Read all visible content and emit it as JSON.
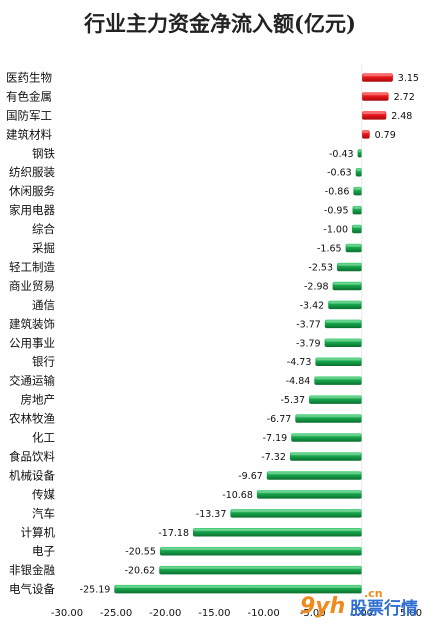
{
  "chart_data": {
    "type": "bar",
    "orientation": "horizontal",
    "title": "行业主力资金净流入额(亿元)",
    "categories": [
      "医药生物",
      "有色金属",
      "国防军工",
      "建筑材料",
      "钢铁",
      "纺织服装",
      "休闲服务",
      "家用电器",
      "综合",
      "采掘",
      "轻工制造",
      "商业贸易",
      "通信",
      "建筑装饰",
      "公用事业",
      "银行",
      "交通运输",
      "房地产",
      "农林牧渔",
      "化工",
      "食品饮料",
      "机械设备",
      "传媒",
      "汽车",
      "计算机",
      "电子",
      "非银金融",
      "电气设备"
    ],
    "values": [
      3.15,
      2.72,
      2.48,
      0.79,
      -0.43,
      -0.63,
      -0.86,
      -0.95,
      -1.0,
      -1.65,
      -2.53,
      -2.98,
      -3.42,
      -3.77,
      -3.79,
      -4.73,
      -4.84,
      -5.37,
      -6.77,
      -7.19,
      -7.32,
      -9.67,
      -10.68,
      -13.37,
      -17.18,
      -20.55,
      -20.62,
      -25.19
    ],
    "value_labels": [
      "3.15",
      "2.72",
      "2.48",
      "0.79",
      "-0.43",
      "-0.63",
      "-0.86",
      "-0.95",
      "-1.00",
      "-1.65",
      "-2.53",
      "-2.98",
      "-3.42",
      "-3.77",
      "-3.79",
      "-4.73",
      "-4.84",
      "-5.37",
      "-6.77",
      "-7.19",
      "-7.32",
      "-9.67",
      "-10.68",
      "-13.37",
      "-17.18",
      "-20.55",
      "-20.62",
      "-25.19"
    ],
    "xlim": [
      -30,
      5
    ],
    "xticks": [
      -30,
      -25,
      -20,
      -15,
      -10,
      -5,
      0,
      5
    ],
    "xtick_labels": [
      "-30.00",
      "-25.00",
      "-20.00",
      "-15.00",
      "-10.00",
      "-5.00",
      "0.00",
      "5.00"
    ],
    "grid": false,
    "colors": {
      "positive": "#e8161b",
      "negative": "#16a64c"
    }
  },
  "watermark": {
    "logo": "9yh",
    "domain": ".cn",
    "text": "股票行情"
  }
}
